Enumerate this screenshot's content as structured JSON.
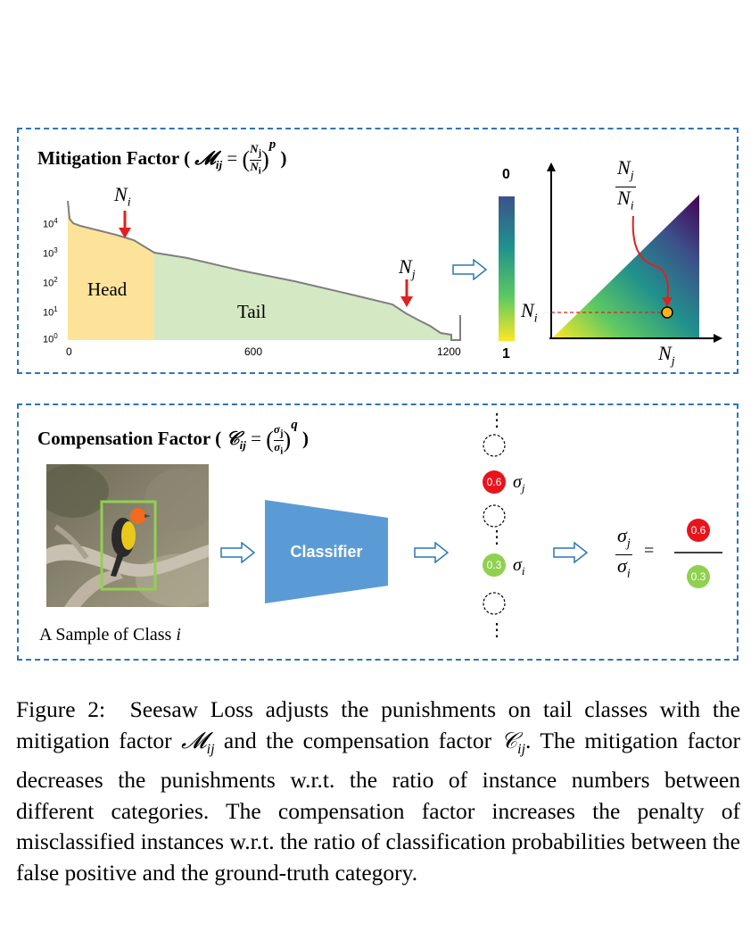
{
  "figure": {
    "mitigation": {
      "title_prefix": "Mitigation Factor (",
      "title_formula": "𝓜",
      "title_sub": "ij",
      "title_eq": "=",
      "title_suffix": ")",
      "frac_num": "N",
      "frac_num_sub": "j",
      "frac_den": "N",
      "frac_den_sub": "i",
      "exponent": "p",
      "head_label": "Head",
      "tail_label": "Tail",
      "marker_i": "N",
      "marker_i_sub": "i",
      "marker_j": "N",
      "marker_j_sub": "j",
      "x_ticks": [
        "0",
        "600",
        "1200"
      ],
      "y_ticks": [
        {
          "base": "10",
          "exp": "4"
        },
        {
          "base": "10",
          "exp": "3"
        },
        {
          "base": "10",
          "exp": "2"
        },
        {
          "base": "10",
          "exp": "1"
        },
        {
          "base": "10",
          "exp": "0"
        }
      ],
      "colorbar_top": "0",
      "colorbar_bottom": "1",
      "ratio_num": "N",
      "ratio_num_sub": "j",
      "ratio_den": "N",
      "ratio_den_sub": "i",
      "axis_y_label": "N",
      "axis_y_label_sub": "i",
      "axis_x_label": "N",
      "axis_x_label_sub": "j"
    },
    "compensation": {
      "title_prefix": "Compensation Factor (",
      "title_formula": "𝒞",
      "title_sub": "ij",
      "title_eq": "=",
      "title_suffix": ")",
      "frac_num": "σ",
      "frac_num_sub": "j",
      "frac_den": "σ",
      "frac_den_sub": "i",
      "exponent": "q",
      "classifier_label": "Classifier",
      "sample_caption": "A Sample of Class",
      "sample_caption_var": "i",
      "score_j": "0.6",
      "score_i": "0.3",
      "sigma_j": "σ",
      "sigma_j_sub": "j",
      "sigma_i": "σ",
      "sigma_i_sub": "i",
      "eq_sign": "=",
      "ellipsis": "⋮"
    },
    "colors": {
      "frame": "#2e75b6",
      "head": "#fde39a",
      "tail": "#d5e8c4",
      "arrow_red": "#e02020",
      "classifier": "#5b9bd5",
      "score_red": "#e8141c",
      "score_green": "#8fd14f",
      "bbox_green": "#92d050"
    }
  },
  "caption": {
    "label": "Figure 2:",
    "part1": "Seesaw Loss adjusts the punishments on tail classes with the mitigation factor",
    "m_symbol": "𝓜",
    "m_sub": "ij",
    "part2": "and the compensation factor",
    "c_symbol": "𝒞",
    "c_sub": "ij",
    "part3": ". The mitigation factor decreases the punishments w.r.t. the ratio of instance numbers between different categories. The compensation factor increases the penalty of misclassified instances w.r.t. the ratio of classification probabilities between the false positive and the ground-truth category."
  }
}
